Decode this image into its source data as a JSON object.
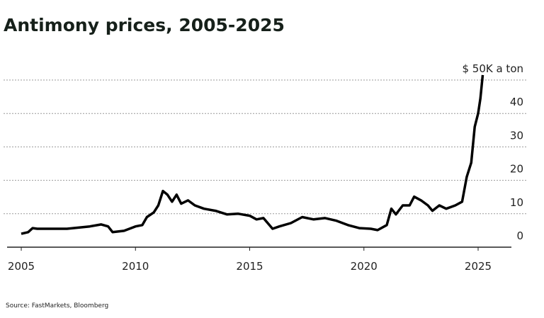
{
  "chart_data": {
    "type": "line",
    "title": "Antimony prices, 2005-2025",
    "source": "Source: FastMarkets, Bloomberg",
    "color": "#000000",
    "grid": true,
    "x": [
      2005.0,
      2005.3,
      2005.5,
      2005.7,
      2006.0,
      2007.0,
      2008.0,
      2008.5,
      2008.8,
      2009.0,
      2009.5,
      2010.0,
      2010.3,
      2010.5,
      2010.8,
      2011.0,
      2011.2,
      2011.4,
      2011.6,
      2011.8,
      2012.0,
      2012.3,
      2012.6,
      2013.0,
      2013.5,
      2014.0,
      2014.5,
      2015.0,
      2015.3,
      2015.6,
      2016.0,
      2016.3,
      2016.8,
      2017.3,
      2017.8,
      2018.3,
      2018.8,
      2019.3,
      2019.8,
      2020.3,
      2020.6,
      2021.0,
      2021.2,
      2021.4,
      2021.7,
      2022.0,
      2022.2,
      2022.5,
      2022.8,
      2023.0,
      2023.3,
      2023.6,
      2024.0,
      2024.3,
      2024.5,
      2024.7,
      2024.85,
      2025.0,
      2025.1,
      2025.2
    ],
    "values": [
      4,
      4.5,
      5.7,
      5.5,
      5.5,
      5.5,
      6.2,
      6.8,
      6.2,
      4.5,
      4.9,
      6.2,
      6.6,
      9,
      10.4,
      12.5,
      16.8,
      15.7,
      13.6,
      15.7,
      13,
      14,
      12.5,
      11.5,
      10.9,
      9.8,
      10,
      9.4,
      8.3,
      8.7,
      5.5,
      6.2,
      7.2,
      9,
      8.3,
      8.7,
      7.9,
      6.6,
      5.7,
      5.5,
      5.1,
      6.6,
      11.5,
      9.8,
      12.5,
      12.5,
      15.1,
      14,
      12.5,
      10.9,
      12.5,
      11.5,
      12.5,
      13.6,
      21,
      25.3,
      36,
      40,
      44.5,
      51.5
    ],
    "xlim": [
      2004.9,
      2026.6
    ],
    "xticks": [
      2005,
      2010,
      2015,
      2020,
      2025
    ],
    "ylim": [
      0,
      52
    ],
    "yticks": [
      0,
      10,
      20,
      30,
      40,
      {
        "value": 50,
        "label": "$ 50K a ton"
      }
    ]
  }
}
